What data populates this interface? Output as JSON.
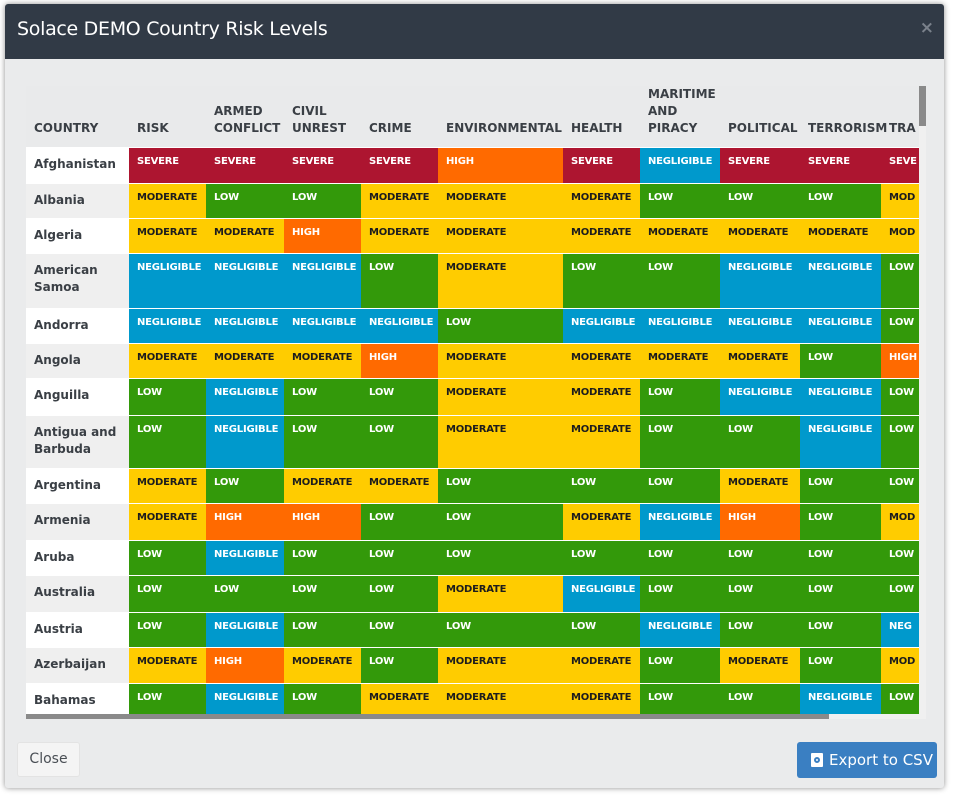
{
  "header": {
    "title": "Solace DEMO Country Risk Levels",
    "close_glyph": "×"
  },
  "table": {
    "columns": [
      "COUNTRY",
      "RISK",
      "ARMED CONFLICT",
      "CIVIL UNREST",
      "CRIME",
      "ENVIRONMENTAL",
      "HEALTH",
      "MARITIME AND PIRACY",
      "POLITICAL",
      "TERRORISM",
      "TRA"
    ],
    "rows": [
      {
        "country": "Afghanistan",
        "levels": [
          "SEVERE",
          "SEVERE",
          "SEVERE",
          "SEVERE",
          "HIGH",
          "SEVERE",
          "NEGLIGIBLE",
          "SEVERE",
          "SEVERE",
          "SEVE"
        ]
      },
      {
        "country": "Albania",
        "levels": [
          "MODERATE",
          "LOW",
          "LOW",
          "MODERATE",
          "MODERATE",
          "MODERATE",
          "LOW",
          "LOW",
          "LOW",
          "MOD"
        ]
      },
      {
        "country": "Algeria",
        "levels": [
          "MODERATE",
          "MODERATE",
          "HIGH",
          "MODERATE",
          "MODERATE",
          "MODERATE",
          "MODERATE",
          "MODERATE",
          "MODERATE",
          "MOD"
        ]
      },
      {
        "country": "American Samoa",
        "levels": [
          "NEGLIGIBLE",
          "NEGLIGIBLE",
          "NEGLIGIBLE",
          "LOW",
          "MODERATE",
          "LOW",
          "LOW",
          "NEGLIGIBLE",
          "NEGLIGIBLE",
          "LOW"
        ]
      },
      {
        "country": "Andorra",
        "levels": [
          "NEGLIGIBLE",
          "NEGLIGIBLE",
          "NEGLIGIBLE",
          "NEGLIGIBLE",
          "LOW",
          "NEGLIGIBLE",
          "NEGLIGIBLE",
          "NEGLIGIBLE",
          "NEGLIGIBLE",
          "LOW"
        ]
      },
      {
        "country": "Angola",
        "levels": [
          "MODERATE",
          "MODERATE",
          "MODERATE",
          "HIGH",
          "MODERATE",
          "MODERATE",
          "MODERATE",
          "MODERATE",
          "LOW",
          "HIGH"
        ]
      },
      {
        "country": "Anguilla",
        "levels": [
          "LOW",
          "NEGLIGIBLE",
          "LOW",
          "LOW",
          "MODERATE",
          "MODERATE",
          "LOW",
          "NEGLIGIBLE",
          "NEGLIGIBLE",
          "LOW"
        ]
      },
      {
        "country": "Antigua and Barbuda",
        "levels": [
          "LOW",
          "NEGLIGIBLE",
          "LOW",
          "LOW",
          "MODERATE",
          "MODERATE",
          "LOW",
          "LOW",
          "NEGLIGIBLE",
          "LOW"
        ]
      },
      {
        "country": "Argentina",
        "levels": [
          "MODERATE",
          "LOW",
          "MODERATE",
          "MODERATE",
          "LOW",
          "LOW",
          "LOW",
          "MODERATE",
          "LOW",
          "LOW"
        ]
      },
      {
        "country": "Armenia",
        "levels": [
          "MODERATE",
          "HIGH",
          "HIGH",
          "LOW",
          "LOW",
          "MODERATE",
          "NEGLIGIBLE",
          "HIGH",
          "LOW",
          "MOD"
        ]
      },
      {
        "country": "Aruba",
        "levels": [
          "LOW",
          "NEGLIGIBLE",
          "LOW",
          "LOW",
          "LOW",
          "LOW",
          "LOW",
          "LOW",
          "LOW",
          "LOW"
        ]
      },
      {
        "country": "Australia",
        "levels": [
          "LOW",
          "LOW",
          "LOW",
          "LOW",
          "MODERATE",
          "NEGLIGIBLE",
          "LOW",
          "LOW",
          "LOW",
          "LOW"
        ]
      },
      {
        "country": "Austria",
        "levels": [
          "LOW",
          "NEGLIGIBLE",
          "LOW",
          "LOW",
          "LOW",
          "LOW",
          "NEGLIGIBLE",
          "LOW",
          "LOW",
          "NEG"
        ]
      },
      {
        "country": "Azerbaijan",
        "levels": [
          "MODERATE",
          "HIGH",
          "MODERATE",
          "LOW",
          "MODERATE",
          "MODERATE",
          "LOW",
          "MODERATE",
          "LOW",
          "MOD"
        ]
      },
      {
        "country": "Bahamas",
        "levels": [
          "LOW",
          "NEGLIGIBLE",
          "LOW",
          "MODERATE",
          "MODERATE",
          "MODERATE",
          "LOW",
          "LOW",
          "NEGLIGIBLE",
          "LOW"
        ]
      }
    ]
  },
  "footer": {
    "close_label": "Close",
    "export_label": "Export to CSV"
  }
}
